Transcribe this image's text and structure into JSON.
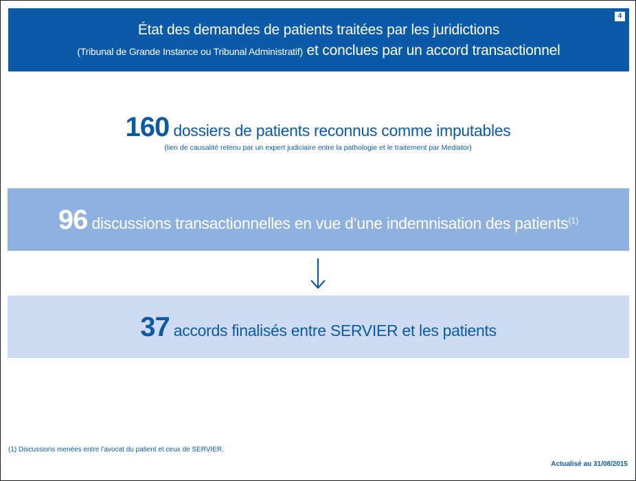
{
  "header": {
    "title_line1": "État des demandes de patients traitées par les juridictions",
    "title_line2_small": "(Tribunal de Grande Instance ou Tribunal Administratif)",
    "title_line2_main": " et conclues par un accord transactionnel",
    "page_number": "4"
  },
  "stat_160": {
    "number": "160",
    "label": " dossiers de patients reconnus comme imputables",
    "sub": "(lien de causalité retenu par un expert judiciaire entre la pathologie et le traitement par Mediator)"
  },
  "stat_96": {
    "number": "96",
    "label": " discussions transactionnelles en vue d’une indemnisation des patients",
    "note_ref": "(1)"
  },
  "stat_37": {
    "number": "37",
    "label": " accords finalisés entre SERVIER et les patients"
  },
  "footnote": "(1) Discussions menées entre l’avocat du patient et ceux de SERVIER.",
  "updated": "Actualisé au 31/08/2015",
  "colors": {
    "primary_blue": "#0a5aa8",
    "medium_blue": "#8fb1e0",
    "light_blue": "#cddcf2"
  },
  "icons": {
    "arrow": "arrow-down-icon"
  }
}
